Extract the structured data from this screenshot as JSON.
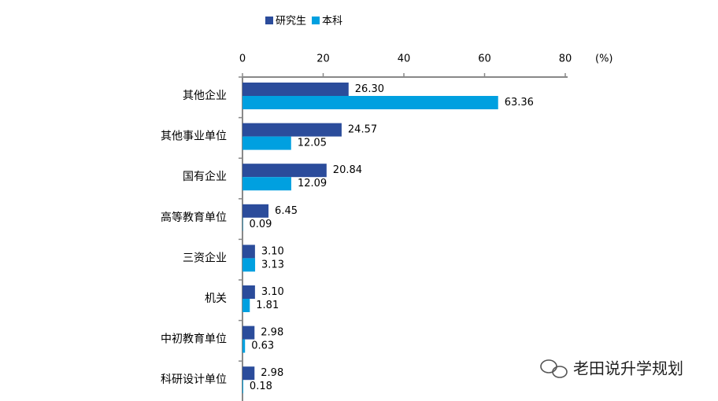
{
  "chart_data": {
    "type": "hbar",
    "categories": [
      "其他企业",
      "其他事业单位",
      "国有企业",
      "高等教育单位",
      "三资企业",
      "机关",
      "中初教育单位",
      "科研设计单位"
    ],
    "series": [
      {
        "name": "研究生",
        "color": "#2b4c9b",
        "values": [
          26.3,
          24.57,
          20.84,
          6.45,
          3.1,
          3.1,
          2.98,
          2.98
        ],
        "value_labels": [
          "26.30",
          "24.57",
          "20.84",
          "6.45",
          "3.10",
          "3.10",
          "2.98",
          "2.98"
        ]
      },
      {
        "name": "本科",
        "color": "#00a0e0",
        "values": [
          63.36,
          12.05,
          12.09,
          0.09,
          3.13,
          1.81,
          0.63,
          0.18
        ],
        "value_labels": [
          "63.36",
          "12.05",
          "12.09",
          "0.09",
          "3.13",
          "1.81",
          "0.63",
          "0.18"
        ]
      }
    ],
    "xlim": [
      0,
      80
    ],
    "xticks": [
      0,
      20,
      40,
      60,
      80
    ],
    "xlabel": "(%)",
    "legend": "top"
  },
  "watermark": "老田说升学规划"
}
